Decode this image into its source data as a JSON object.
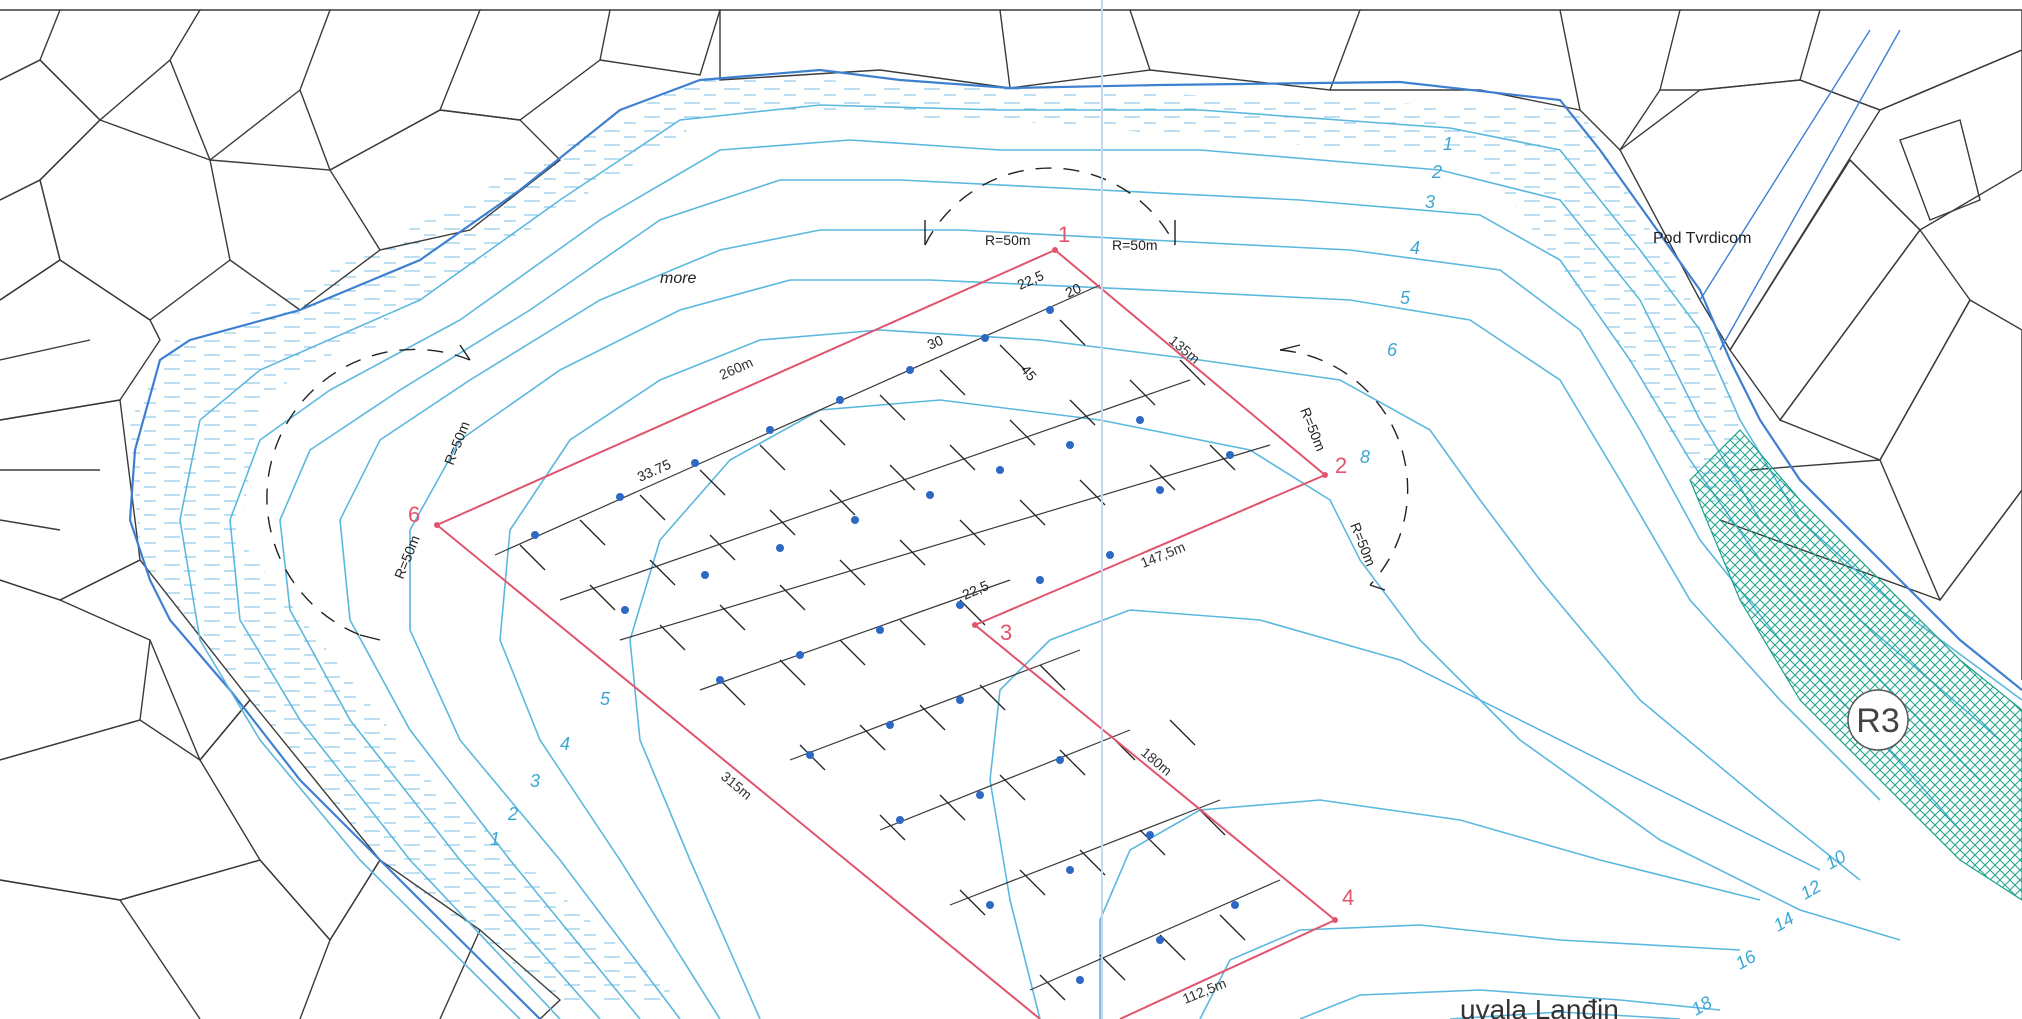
{
  "map": {
    "place_labels": {
      "sea": "more",
      "cape": "Pod Tvrdicom",
      "bay": "uvala Lanđin"
    },
    "zone_label": "R3",
    "depth_contours": [
      "1",
      "2",
      "3",
      "4",
      "5",
      "6",
      "8",
      "10",
      "12",
      "14",
      "16",
      "18"
    ],
    "boundary_points": [
      "1",
      "2",
      "3",
      "4",
      "6"
    ],
    "boundary_lengths": [
      "260m",
      "135m",
      "147,5m",
      "180m",
      "112,5m",
      "315m"
    ],
    "radius_labels": [
      "R=50m",
      "R=50m",
      "R=50m",
      "R=50m",
      "R=50m",
      "R=50m"
    ],
    "grid_spacings": [
      "22,5",
      "20",
      "30",
      "45",
      "33.75",
      "22,5"
    ],
    "colors": {
      "contour": "#5bb8de",
      "shoreline": "#3d7fd0",
      "boundary": "#e0546e",
      "zone_hatch": "#1aa28a",
      "parcel": "#3a3a3a"
    }
  }
}
